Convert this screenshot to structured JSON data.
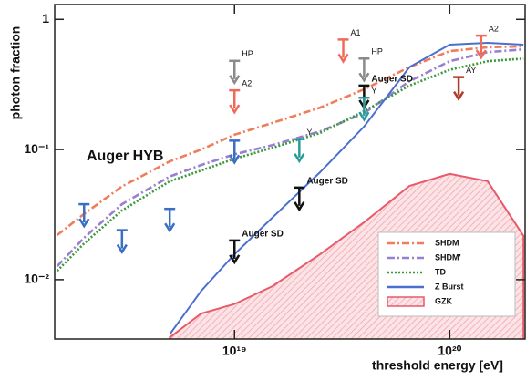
{
  "chart_data": {
    "type": "line",
    "xlabel": "threshold energy [eV]",
    "ylabel": "photon fraction",
    "xscale": "log",
    "yscale": "log",
    "xlim": [
      1.46e+18,
      2.24e+20
    ],
    "ylim": [
      0.0035,
      1.3
    ],
    "xticks": [
      {
        "value": 1e+19,
        "label": "10¹⁹"
      },
      {
        "value": 1e+20,
        "label": "10²⁰"
      }
    ],
    "yticks": [
      {
        "value": 0.01,
        "label": "10⁻²"
      },
      {
        "value": 0.1,
        "label": "10⁻¹"
      },
      1
    ],
    "legend": "lower right",
    "x": [
      1.5e+18,
      2e+18,
      3e+18,
      5e+18,
      7e+18,
      1e+19,
      1.5e+19,
      2.5e+19,
      4e+19,
      6.5e+19,
      1e+20,
      1.5e+20,
      2.2e+20
    ],
    "series": [
      {
        "name": "SHDM",
        "color": "#ef7d5a",
        "style": "dashdot",
        "values": [
          0.022,
          0.032,
          0.052,
          0.081,
          0.1,
          0.13,
          0.16,
          0.21,
          0.29,
          0.43,
          0.57,
          0.61,
          0.62
        ]
      },
      {
        "name": "SHDM'",
        "color": "#9a7fd0",
        "style": "dashdot",
        "values": [
          0.0127,
          0.021,
          0.038,
          0.062,
          0.076,
          0.092,
          0.108,
          0.138,
          0.19,
          0.335,
          0.477,
          0.56,
          0.588
        ]
      },
      {
        "name": "TD",
        "color": "#3a9a3a",
        "style": "dotted",
        "values": [
          0.0117,
          0.019,
          0.034,
          0.057,
          0.069,
          0.085,
          0.103,
          0.134,
          0.197,
          0.31,
          0.41,
          0.477,
          0.5
        ]
      },
      {
        "name": "Z Burst",
        "color": "#4a6fd0",
        "style": "solid",
        "values": [
          null,
          null,
          null,
          0.0038,
          0.0082,
          0.0157,
          0.03,
          0.067,
          0.15,
          0.43,
          0.64,
          0.66,
          0.64
        ]
      },
      {
        "name": "GZK",
        "color": "#e85a6a",
        "style": "area",
        "values": [
          null,
          null,
          null,
          0.0036,
          0.0055,
          0.0065,
          0.0089,
          0.0157,
          0.0276,
          0.0525,
          0.065,
          0.057,
          0.0217
        ]
      }
    ],
    "limits": [
      {
        "label": "Auger HYB",
        "color": "#3a6fc4",
        "x": [
          2e+18,
          3e+18,
          5e+18,
          1e+19
        ],
        "values": [
          0.038,
          0.024,
          0.035,
          0.117
        ]
      },
      {
        "color": "#111111",
        "x": [
          1e+19,
          2e+19,
          4e+19
        ],
        "values": [
          0.02,
          0.051,
          0.31
        ],
        "point_labels": [
          "Auger SD",
          "Auger SD",
          "Auger SD"
        ]
      },
      {
        "color": "#8a8a8a",
        "x": [
          1e+19,
          4e+19
        ],
        "values": [
          0.48,
          0.5
        ],
        "point_labels": [
          "HP",
          "HP"
        ]
      },
      {
        "color": "#f06a5a",
        "x": [
          1e+19,
          3.2e+19,
          1.4e+20
        ],
        "values": [
          0.285,
          0.7,
          0.75
        ],
        "point_labels": [
          "A2",
          "A1",
          "A2"
        ]
      },
      {
        "color": "#2a9a9a",
        "x": [
          2e+19,
          4e+19
        ],
        "values": [
          0.12,
          0.25
        ],
        "point_labels": [
          "Y",
          "Y"
        ]
      },
      {
        "color": "#b03a2a",
        "x": [
          1.1e+20
        ],
        "values": [
          0.36
        ],
        "point_labels": [
          "AY"
        ]
      }
    ]
  }
}
